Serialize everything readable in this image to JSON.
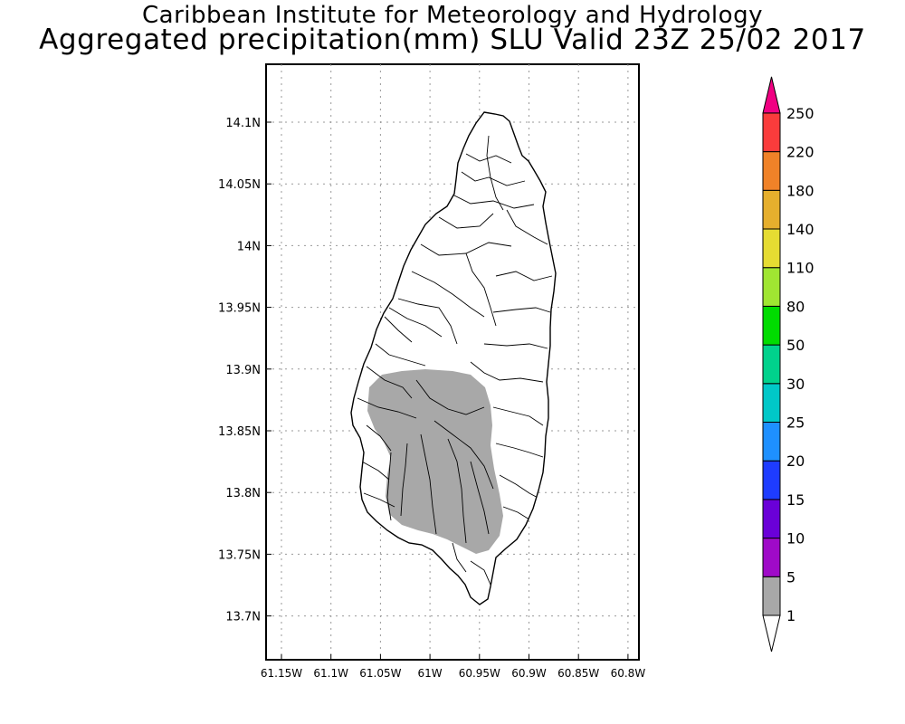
{
  "header": {
    "institution": "Caribbean Institute for Meteorology and Hydrology",
    "product_title": "Aggregated precipitation(mm) SLU Valid 23Z 25/02 2017"
  },
  "map": {
    "lat_ticks": [
      "14.1N",
      "14.05N",
      "14N",
      "13.95N",
      "13.9N",
      "13.85N",
      "13.8N",
      "13.75N",
      "13.7N"
    ],
    "lon_ticks": [
      "61.15W",
      "61.1W",
      "61.05W",
      "61W",
      "60.95W",
      "60.9W",
      "60.85W",
      "60.8W"
    ],
    "precip_area_color": "#a8a8a8",
    "land_color": "#ffffff"
  },
  "colorbar": {
    "labels": [
      "1",
      "5",
      "10",
      "15",
      "20",
      "25",
      "30",
      "50",
      "80",
      "110",
      "140",
      "180",
      "220",
      "250"
    ],
    "colors": [
      "#a8a8a8",
      "#9f0ac8",
      "#6a00d8",
      "#1e3cff",
      "#1e90ff",
      "#00c8c8",
      "#00d28c",
      "#00dc00",
      "#a0e632",
      "#e6dc32",
      "#e6af2d",
      "#f08228",
      "#fa3c3c",
      "#f00082"
    ]
  }
}
